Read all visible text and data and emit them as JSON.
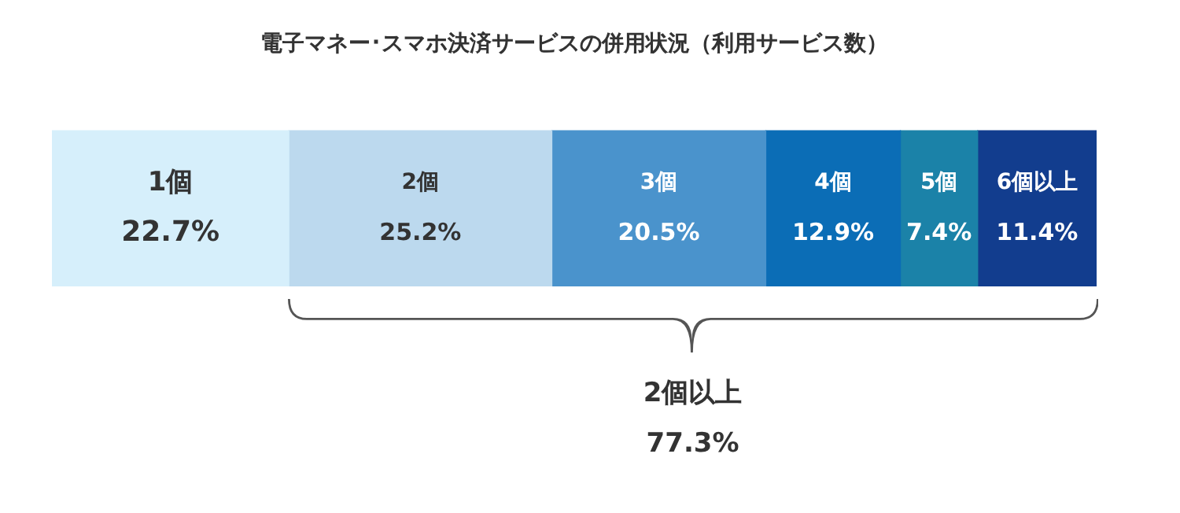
{
  "chart_data": {
    "type": "bar",
    "orientation": "horizontal",
    "stacked": true,
    "title": "電子マネー･スマホ決済サービスの併用状況（利用サービス数）",
    "categories": [
      null
    ],
    "tick_labels": false,
    "legend": false,
    "series": [
      {
        "name": "1個",
        "color": "#d6effb",
        "values": [
          22.7
        ],
        "value_labels": [
          "22.7%"
        ]
      },
      {
        "name": "2個",
        "color": "#bcd9ee",
        "values": [
          25.2
        ],
        "value_labels": [
          "25.2%"
        ]
      },
      {
        "name": "3個",
        "color": "#4a93cc",
        "values": [
          20.5
        ],
        "value_labels": [
          "20.5%"
        ]
      },
      {
        "name": "4個",
        "color": "#0b6db6",
        "values": [
          12.9
        ],
        "value_labels": [
          "12.9%"
        ]
      },
      {
        "name": "5個",
        "color": "#1b82a8",
        "values": [
          7.4
        ],
        "value_labels": [
          "7.4%"
        ]
      },
      {
        "name": "6個以上",
        "color": "#123d8e",
        "values": [
          11.4
        ],
        "value_labels": [
          "11.4%"
        ]
      }
    ],
    "annotations": [
      "2個以上\n77.3%"
    ]
  }
}
